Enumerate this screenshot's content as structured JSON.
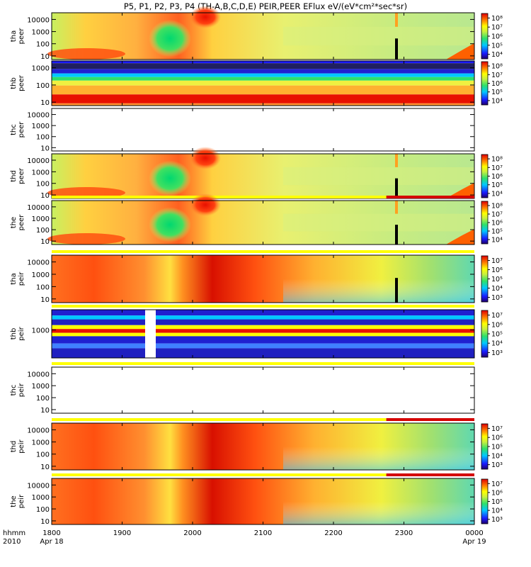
{
  "title": "P5, P1, P2, P3, P4 (TH-A,B,C,D,E) PEIR,PEER EFlux eV/(eV*cm²*sec*sr)",
  "colors": {
    "red": "#d40000",
    "yellow": "#ffff00",
    "white": "#ffffff",
    "black": "#000000"
  },
  "time_axis": {
    "row1_label": "hhmm",
    "row2_label": "2010",
    "ticks": [
      {
        "value": "1800",
        "date": "Apr 18"
      },
      {
        "value": "1900",
        "date": ""
      },
      {
        "value": "2000",
        "date": ""
      },
      {
        "value": "2100",
        "date": ""
      },
      {
        "value": "2200",
        "date": ""
      },
      {
        "value": "2300",
        "date": ""
      },
      {
        "value": "0000",
        "date": "Apr 19"
      }
    ]
  },
  "chart_data": {
    "type": "heatmap",
    "x_range": [
      "1800 Apr 18",
      "0000 Apr 19"
    ],
    "x_ticks": [
      "1800",
      "1900",
      "2000",
      "2100",
      "2200",
      "2300",
      "0000"
    ],
    "panels": [
      {
        "id": "tha-peer",
        "probe": "tha",
        "instrument": "peer",
        "y_ticks": [
          "10",
          "100",
          "1000",
          "10000"
        ],
        "colorbar_ticks": [
          "10⁴",
          "10⁵",
          "10⁶",
          "10⁷",
          "10⁸"
        ],
        "status_bar": "",
        "status_red_from": null,
        "pattern": "peer",
        "has_data": true
      },
      {
        "id": "thb-peer",
        "probe": "thb",
        "instrument": "peer",
        "y_ticks": [
          "10",
          "100",
          "1000"
        ],
        "colorbar_ticks": [
          "10⁴",
          "10⁵",
          "10⁶",
          "10⁷",
          "10⁸"
        ],
        "status_bar": "",
        "status_red_from": null,
        "pattern": "thb_peer",
        "has_data": true
      },
      {
        "id": "thc-peer",
        "probe": "thc",
        "instrument": "peer",
        "y_ticks": [
          "10",
          "100",
          "1000",
          "10000"
        ],
        "colorbar_ticks": [],
        "status_bar": "",
        "status_red_from": null,
        "pattern": "empty",
        "has_data": false
      },
      {
        "id": "thd-peer",
        "probe": "thd",
        "instrument": "peer",
        "y_ticks": [
          "10",
          "100",
          "1000",
          "10000"
        ],
        "colorbar_ticks": [
          "10⁴",
          "10⁵",
          "10⁶",
          "10⁷",
          "10⁸"
        ],
        "status_bar": "",
        "status_red_from": null,
        "pattern": "peer",
        "has_data": true
      },
      {
        "id": "the-peer",
        "probe": "the",
        "instrument": "peer",
        "y_ticks": [
          "10",
          "100",
          "1000",
          "10000"
        ],
        "colorbar_ticks": [
          "10⁴",
          "10⁵",
          "10⁶",
          "10⁷",
          "10⁸"
        ],
        "status_bar": "above",
        "status_red_from": "2245",
        "pattern": "peer",
        "has_data": true
      },
      {
        "id": "tha-peir",
        "probe": "tha",
        "instrument": "peir",
        "y_ticks": [
          "10",
          "100",
          "1000",
          "10000"
        ],
        "colorbar_ticks": [
          "10³",
          "10⁴",
          "10⁵",
          "10⁶",
          "10⁷"
        ],
        "status_bar": "above",
        "status_red_from": null,
        "pattern": "peir",
        "has_data": true
      },
      {
        "id": "thb-peir",
        "probe": "thb",
        "instrument": "peir",
        "y_ticks": [
          "1000"
        ],
        "colorbar_ticks": [
          "10³",
          "10⁴",
          "10⁵",
          "10⁶",
          "10⁷"
        ],
        "status_bar": "above",
        "status_red_from": null,
        "pattern": "thb_peir",
        "has_data": true
      },
      {
        "id": "thc-peir",
        "probe": "thc",
        "instrument": "peir",
        "y_ticks": [
          "10",
          "100",
          "1000",
          "10000"
        ],
        "colorbar_ticks": [],
        "status_bar": "above",
        "status_red_from": null,
        "pattern": "empty",
        "has_data": false
      },
      {
        "id": "thd-peir",
        "probe": "thd",
        "instrument": "peir",
        "y_ticks": [
          "10",
          "100",
          "1000",
          "10000"
        ],
        "colorbar_ticks": [
          "10³",
          "10⁴",
          "10⁵",
          "10⁶",
          "10⁷"
        ],
        "status_bar": "above",
        "status_red_from": "2245",
        "pattern": "peir",
        "has_data": true
      },
      {
        "id": "the-peir",
        "probe": "the",
        "instrument": "peir",
        "y_ticks": [
          "10",
          "100",
          "1000",
          "10000"
        ],
        "colorbar_ticks": [
          "10³",
          "10⁴",
          "10⁵",
          "10⁶",
          "10⁷"
        ],
        "status_bar": "above",
        "status_red_from": "2245",
        "pattern": "peir",
        "has_data": true
      }
    ]
  }
}
